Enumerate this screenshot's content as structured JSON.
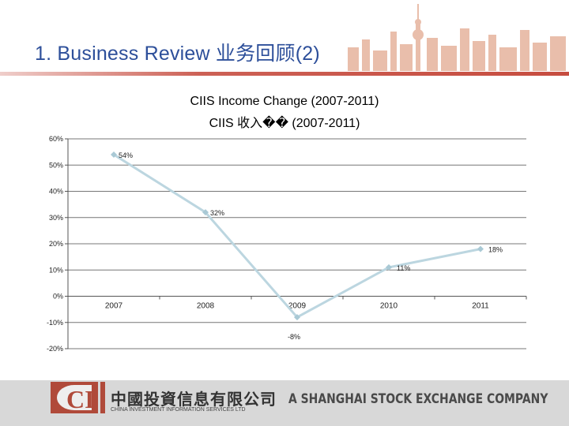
{
  "header": {
    "title": "1. Business Review 业务回顾(2)"
  },
  "footer": {
    "logo_letters": "CI",
    "company_cn": "中國投資信息有限公司",
    "company_en": "CHINA INVESTMENT INFORMATION SERVICES LTD",
    "tagline": "A SHANGHAI STOCK EXCHANGE COMPANY"
  },
  "colors": {
    "title_blue": "#2d4f9a",
    "accent_red": "#c0392b",
    "line_series": "#bcd6e0",
    "marker": "#a9c9d5"
  },
  "chart_data": {
    "type": "line",
    "title": "CIIS Income Change (2007-2011)",
    "subtitle": "CIIS 收入�� (2007-2011)",
    "xlabel": "",
    "ylabel": "",
    "x": [
      "2007",
      "2008",
      "2009",
      "2010",
      "2011"
    ],
    "series": [
      {
        "values": [
          54,
          32,
          -8,
          11,
          18
        ]
      }
    ],
    "data_labels": [
      "54%",
      "32%",
      "-8%",
      "11%",
      "18%"
    ],
    "y_ticks": [
      60,
      50,
      40,
      30,
      20,
      10,
      0,
      -10,
      -20
    ],
    "y_tick_labels": [
      "60%",
      "50%",
      "40%",
      "30%",
      "20%",
      "10%",
      "0%",
      "-10%",
      "-20%"
    ],
    "ylim": [
      -20,
      60
    ],
    "grid": true,
    "legend": "none"
  }
}
